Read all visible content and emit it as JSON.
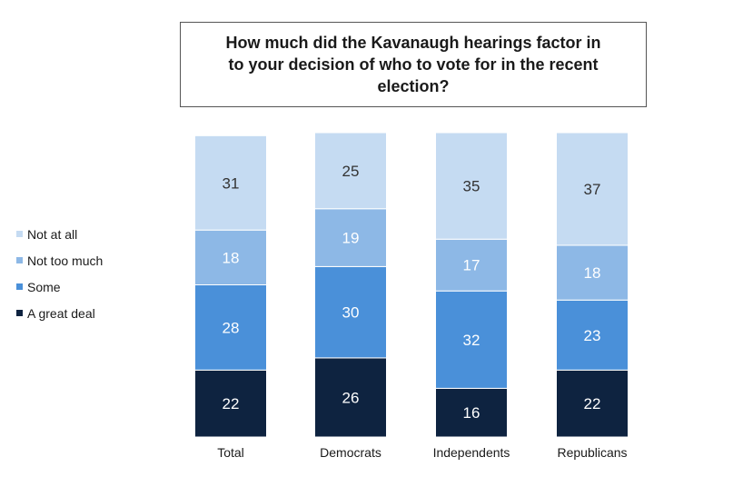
{
  "chart_data": {
    "type": "bar",
    "stacked": true,
    "title": "How much did the Kavanaugh hearings factor in to your decision of who to vote for in the recent election?",
    "categories": [
      "Total",
      "Democrats",
      "Independents",
      "Republicans"
    ],
    "series": [
      {
        "name": "A great deal",
        "color": "#0e2340",
        "label_color": "#ffffff",
        "values": [
          22,
          26,
          16,
          22
        ]
      },
      {
        "name": "Some",
        "color": "#4a90d9",
        "label_color": "#ffffff",
        "values": [
          28,
          30,
          32,
          23
        ]
      },
      {
        "name": "Not too much",
        "color": "#8db8e6",
        "label_color": "#ffffff",
        "values": [
          18,
          19,
          17,
          18
        ]
      },
      {
        "name": "Not at all",
        "color": "#c5dbf2",
        "label_color": "#333333",
        "values": [
          31,
          25,
          35,
          37
        ]
      }
    ],
    "legend_position": "left",
    "grid": false
  }
}
